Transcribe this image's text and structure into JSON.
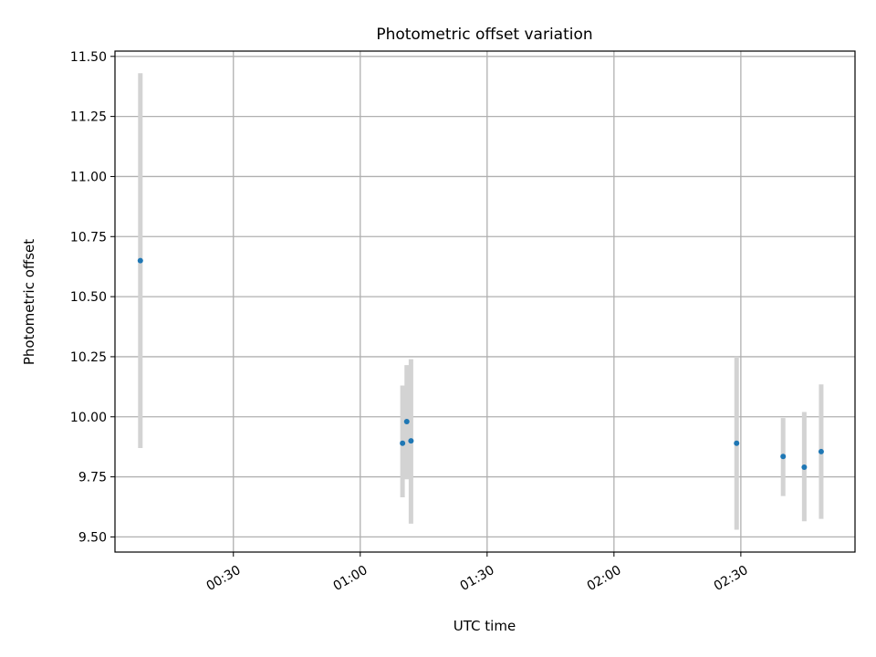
{
  "chart_data": {
    "type": "scatter",
    "title": "Photometric offset variation",
    "xlabel": "UTC time",
    "ylabel": "Photometric offset",
    "xlim": [
      "00:02",
      "02:57"
    ],
    "ylim": [
      9.437,
      11.522
    ],
    "x_ticks": [
      "00:30",
      "01:00",
      "01:30",
      "02:00",
      "02:30"
    ],
    "y_ticks": [
      9.5,
      9.75,
      10.0,
      10.25,
      10.5,
      10.75,
      11.0,
      11.25,
      11.5
    ],
    "y_tick_labels": [
      "9.50",
      "9.75",
      "10.00",
      "10.25",
      "10.50",
      "10.75",
      "11.00",
      "11.25",
      "11.50"
    ],
    "grid": true,
    "colors": {
      "point": "#1f77b4",
      "errorbar": "#d3d3d3",
      "grid": "#b0b0b0"
    },
    "series": [
      {
        "points": [
          {
            "x": "00:08",
            "y": 10.65,
            "lo": 9.87,
            "hi": 11.43
          },
          {
            "x": "01:10",
            "y": 9.89,
            "lo": 9.665,
            "hi": 10.13
          },
          {
            "x": "01:11",
            "y": 9.98,
            "lo": 9.74,
            "hi": 10.215
          },
          {
            "x": "01:12",
            "y": 9.9,
            "lo": 9.555,
            "hi": 10.24
          },
          {
            "x": "02:29",
            "y": 9.89,
            "lo": 9.53,
            "hi": 10.25
          },
          {
            "x": "02:40",
            "y": 9.835,
            "lo": 9.67,
            "hi": 9.995
          },
          {
            "x": "02:45",
            "y": 9.79,
            "lo": 9.565,
            "hi": 10.02
          },
          {
            "x": "02:49",
            "y": 9.855,
            "lo": 9.575,
            "hi": 10.135
          }
        ]
      }
    ]
  }
}
